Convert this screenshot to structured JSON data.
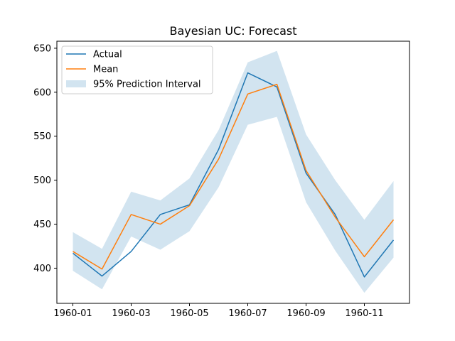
{
  "chart_data": {
    "type": "line",
    "title": "Bayesian UC: Forecast",
    "xlabel": "",
    "ylabel": "",
    "x": [
      "1960-01",
      "1960-02",
      "1960-03",
      "1960-04",
      "1960-05",
      "1960-06",
      "1960-07",
      "1960-08",
      "1960-09",
      "1960-10",
      "1960-11",
      "1960-12"
    ],
    "x_tick_labels": [
      "1960-01",
      "1960-03",
      "1960-05",
      "1960-07",
      "1960-09",
      "1960-11"
    ],
    "y_ticks": [
      400,
      450,
      500,
      550,
      600,
      650
    ],
    "ylim": [
      360,
      658
    ],
    "series": [
      {
        "name": "Actual",
        "color": "#1f77b4",
        "values": [
          417,
          391,
          419,
          461,
          472,
          535,
          622,
          606,
          508,
          461,
          390,
          432
        ]
      },
      {
        "name": "Mean",
        "color": "#ff7f0e",
        "values": [
          419,
          399,
          461,
          450,
          471,
          524,
          598,
          609,
          511,
          458,
          413,
          455
        ]
      }
    ],
    "interval": {
      "name": "95% Prediction Interval",
      "color": "#1f77b4",
      "opacity": 0.2,
      "lower": [
        397,
        376,
        436,
        421,
        442,
        492,
        563,
        572,
        475,
        420,
        372,
        412
      ],
      "upper": [
        441,
        422,
        487,
        477,
        502,
        557,
        634,
        647,
        552,
        500,
        455,
        499
      ]
    },
    "grid": false,
    "legend": "top-left"
  }
}
